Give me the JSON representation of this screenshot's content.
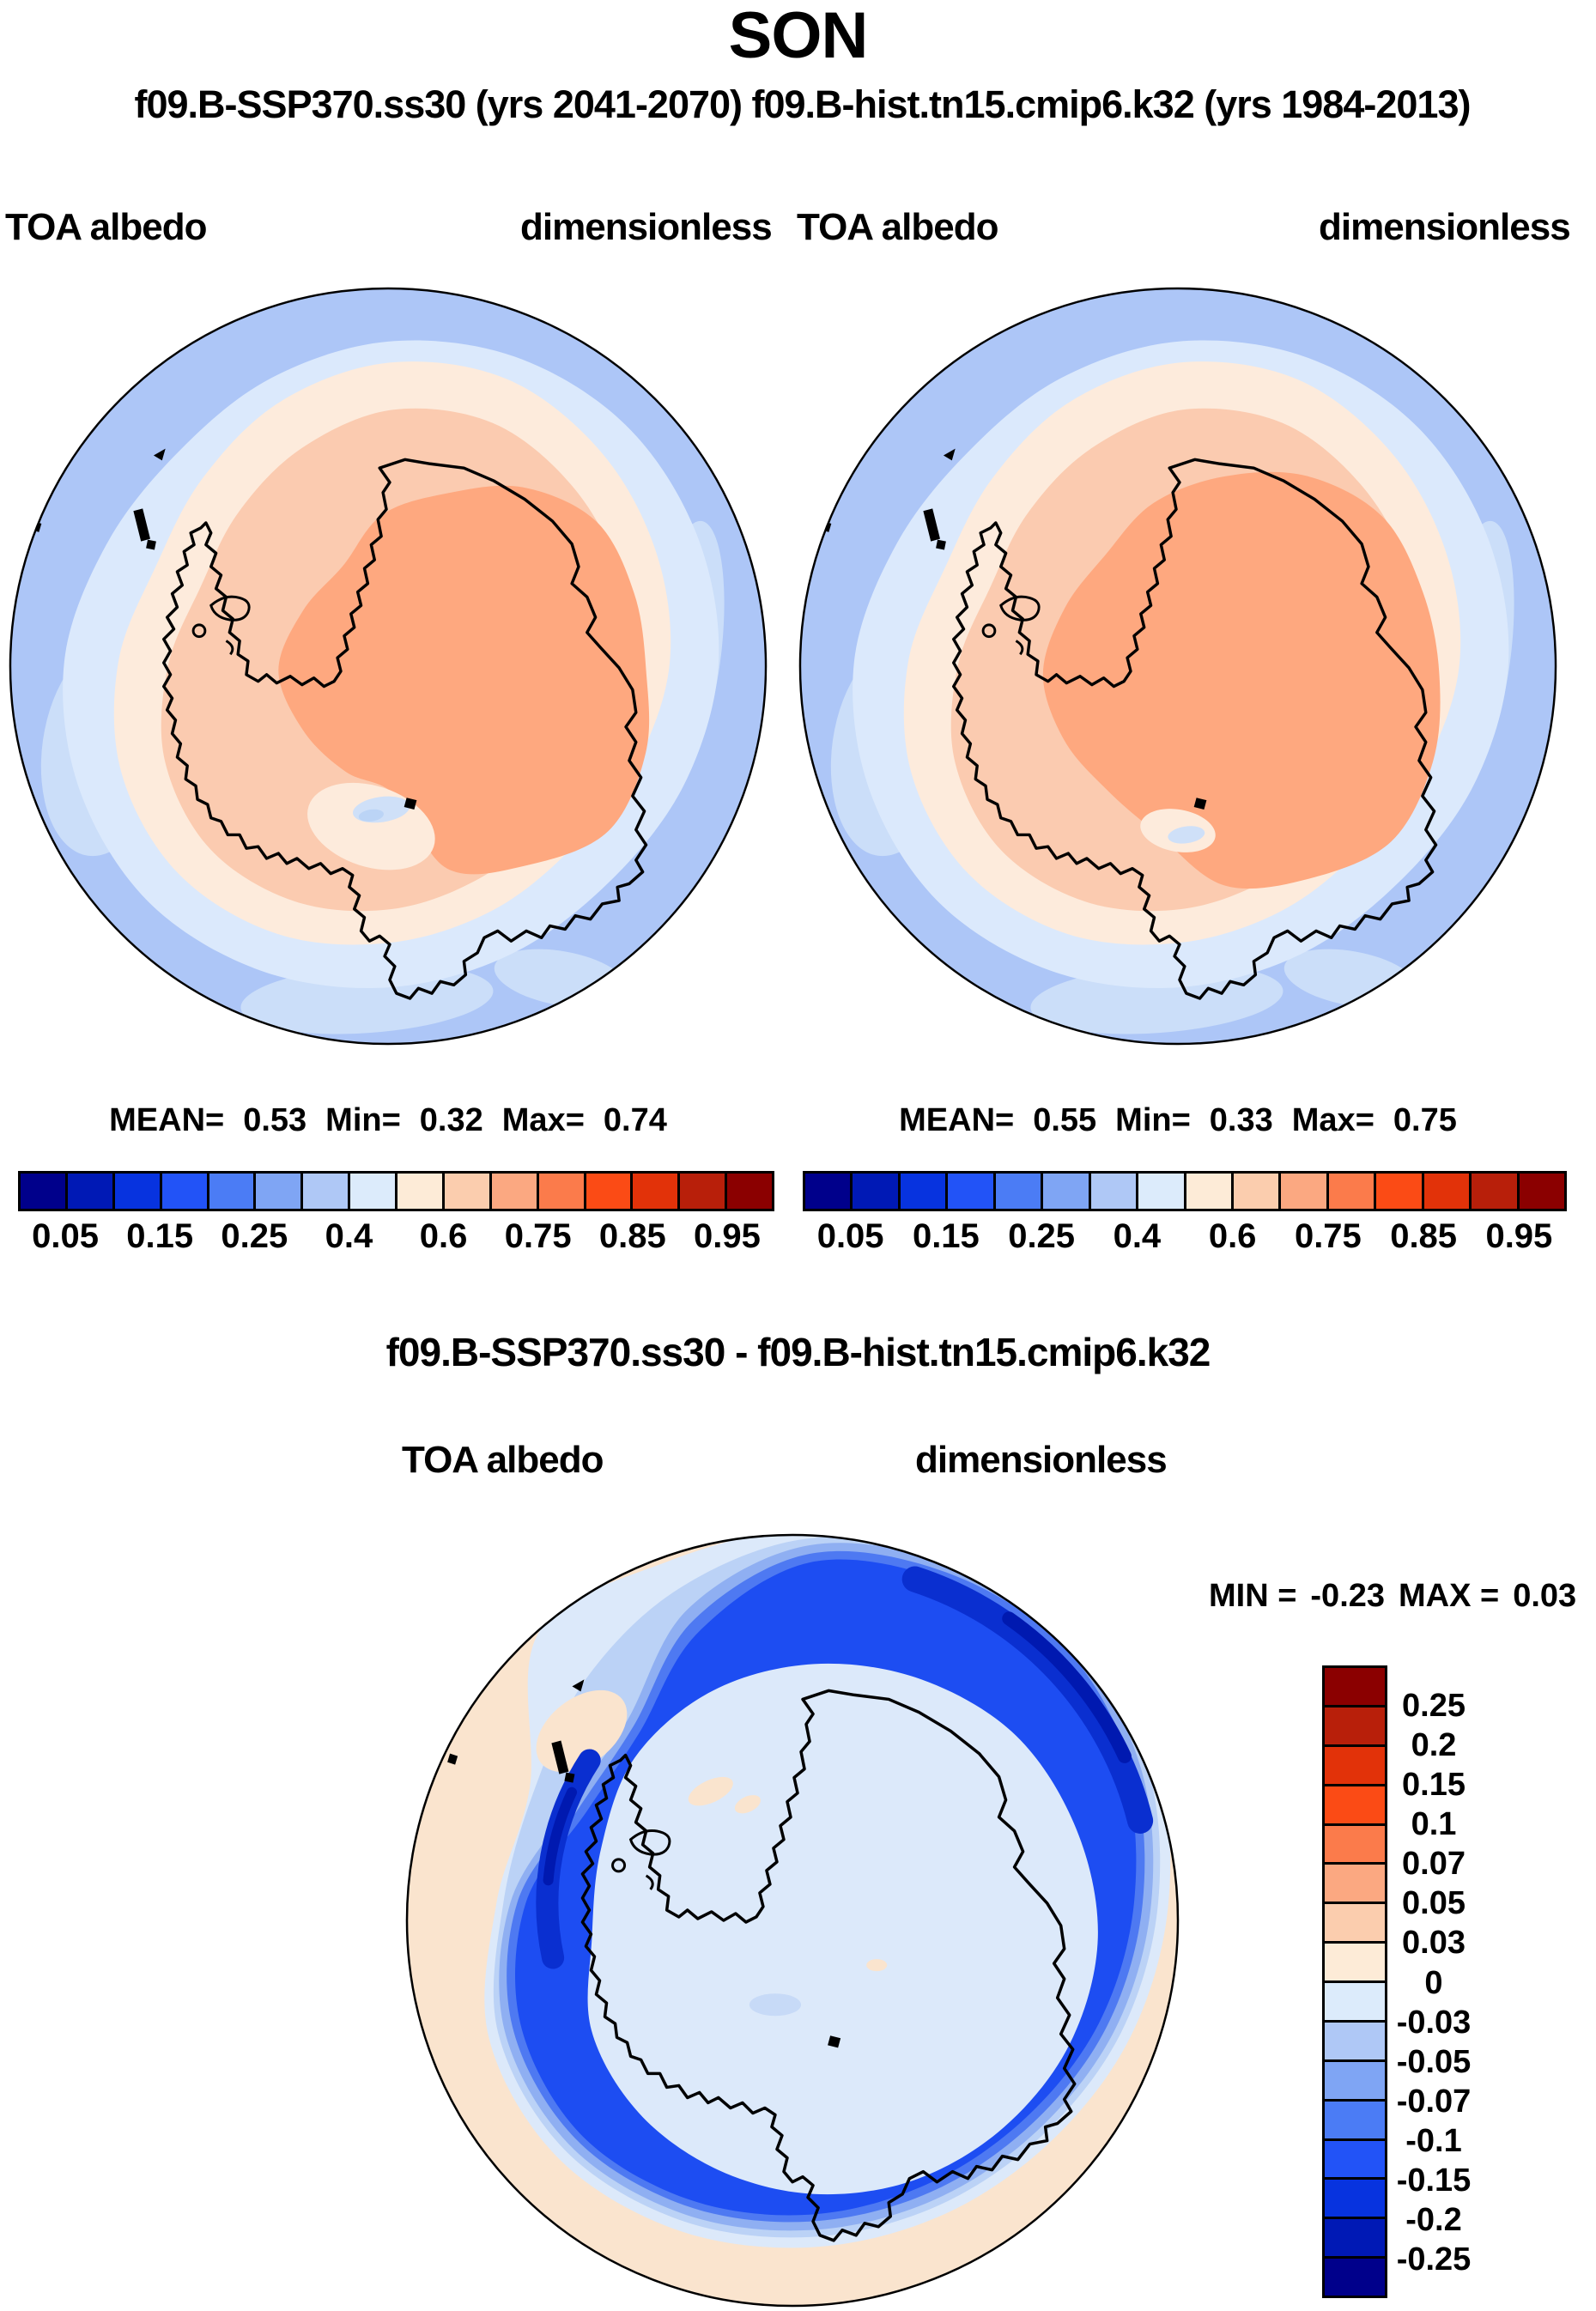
{
  "title": "SON",
  "subtitle": "f09.B-SSP370.ss30 (yrs 2041-2070)  f09.B-hist.tn15.cmip6.k32 (yrs 1984-2013)",
  "panel_left": {
    "variable": "TOA albedo",
    "units": "dimensionless",
    "mean_label": "MEAN=",
    "mean": "0.53",
    "min_label": "Min=",
    "min": "0.32",
    "max_label": "Max=",
    "max": "0.74"
  },
  "panel_right": {
    "variable": "TOA albedo",
    "units": "dimensionless",
    "mean_label": "MEAN=",
    "mean": "0.55",
    "min_label": "Min=",
    "min": "0.33",
    "max_label": "Max=",
    "max": "0.75"
  },
  "panel_diff": {
    "title": "f09.B-SSP370.ss30 - f09.B-hist.tn15.cmip6.k32",
    "variable": "TOA albedo",
    "units": "dimensionless",
    "min_label": "MIN =",
    "min": "-0.23",
    "max_label": "MAX =",
    "max": "0.03"
  },
  "colorbar": {
    "colors": [
      "#00008B",
      "#0019B5",
      "#0733DF",
      "#2253F7",
      "#4B7CF5",
      "#7FA5F4",
      "#AFC8F6",
      "#DCEBFB",
      "#FDEBD7",
      "#FBCDAE",
      "#FBA881",
      "#FB7B4B",
      "#FB4B15",
      "#E23209",
      "#B81F0A",
      "#8B0000"
    ],
    "tick_labels": [
      "0.05",
      "0.15",
      "0.25",
      "0.4",
      "0.6",
      "0.75",
      "0.85",
      "0.95"
    ],
    "tick_positions": [
      1,
      3,
      5,
      7,
      9,
      11,
      13,
      15
    ]
  },
  "diff_colorbar": {
    "colors": [
      "#8B0000",
      "#B81F0A",
      "#E23209",
      "#FB4B15",
      "#FB7B4B",
      "#FBA881",
      "#FBCDAE",
      "#FDEBD7",
      "#DCEBFB",
      "#AFC8F6",
      "#7FA5F4",
      "#4B7CF5",
      "#2253F7",
      "#0733DF",
      "#0019B5",
      "#00008B"
    ],
    "tick_labels": [
      "0.25",
      "0.2",
      "0.15",
      "0.1",
      "0.07",
      "0.05",
      "0.03",
      "0",
      "-0.03",
      "-0.05",
      "-0.07",
      "-0.1",
      "-0.15",
      "-0.2",
      "-0.25"
    ],
    "tick_positions": [
      1,
      2,
      3,
      4,
      5,
      6,
      7,
      8,
      9,
      10,
      11,
      12,
      13,
      14,
      15
    ]
  },
  "palette": {
    "ocean": "#ADC6F7",
    "ocean_light": "#CBDEF9",
    "pale_blue": "#DBE9FC",
    "pale_peach": "#FDEBDC",
    "light_peach": "#FBCBB0",
    "orange": "#FEA87F",
    "spot_blue": "#CFE0F8",
    "spot_blue2": "#BBD4F6",
    "diff_bg": "#FAE4CE",
    "diff_pale": "#DCE9FA",
    "diff_band1": "#BBD2F6",
    "diff_band2": "#8FAFF2",
    "diff_band3": "#4E79F2",
    "diff_band4": "#1D4DF2",
    "diff_dark": "#0A2FD0",
    "diff_darkest": "#0019B0",
    "diff_patch": "#C7DAF7",
    "coast": "#000000"
  },
  "chart_data": {
    "type": "heatmap",
    "title": "SON",
    "region": "Antarctica (south polar view)",
    "panels": [
      {
        "name": "f09.B-SSP370.ss30",
        "years": "2041-2070",
        "variable": "TOA albedo",
        "units": "dimensionless",
        "mean": 0.53,
        "min": 0.32,
        "max": 0.74
      },
      {
        "name": "f09.B-hist.tn15.cmip6.k32",
        "years": "1984-2013",
        "variable": "TOA albedo",
        "units": "dimensionless",
        "mean": 0.55,
        "min": 0.33,
        "max": 0.75
      },
      {
        "name": "f09.B-SSP370.ss30 - f09.B-hist.tn15.cmip6.k32",
        "variable": "TOA albedo",
        "units": "dimensionless",
        "min": -0.23,
        "max": 0.03
      }
    ],
    "albedo_colorbar_labeled_levels": [
      0.05,
      0.15,
      0.25,
      0.4,
      0.6,
      0.75,
      0.85,
      0.95
    ],
    "diff_colorbar_levels": [
      0.25,
      0.2,
      0.15,
      0.1,
      0.07,
      0.05,
      0.03,
      0,
      -0.03,
      -0.05,
      -0.07,
      -0.1,
      -0.15,
      -0.2,
      -0.25
    ],
    "legend_position": "horizontal below each albedo map; vertical right of difference map",
    "grid": false
  }
}
